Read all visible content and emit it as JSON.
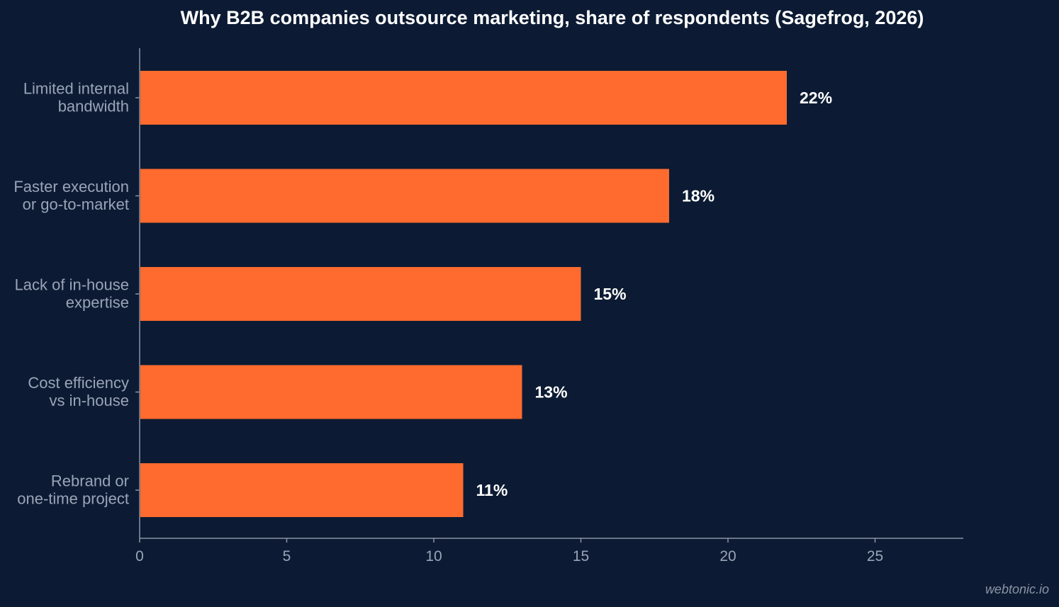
{
  "chart_data": {
    "type": "bar",
    "orientation": "horizontal",
    "title": "Why B2B companies outsource marketing, share of respondents (Sagefrog, 2026)",
    "categories": [
      [
        "Limited internal",
        "bandwidth"
      ],
      [
        "Faster execution",
        "or go-to-market"
      ],
      [
        "Lack of in-house",
        "expertise"
      ],
      [
        "Cost efficiency",
        "vs in-house"
      ],
      [
        "Rebrand or",
        "one-time project"
      ]
    ],
    "values": [
      22,
      18,
      15,
      13,
      11
    ],
    "value_labels": [
      "22%",
      "18%",
      "15%",
      "13%",
      "11%"
    ],
    "xticks": [
      0,
      5,
      10,
      15,
      20,
      25
    ],
    "xlim": [
      0,
      28
    ],
    "xlabel": "",
    "ylabel": "",
    "grid": false,
    "legend": "none",
    "bar_color": "#ff6b2e",
    "background_color": "#0c1b33"
  },
  "watermark": "webtonic.io"
}
